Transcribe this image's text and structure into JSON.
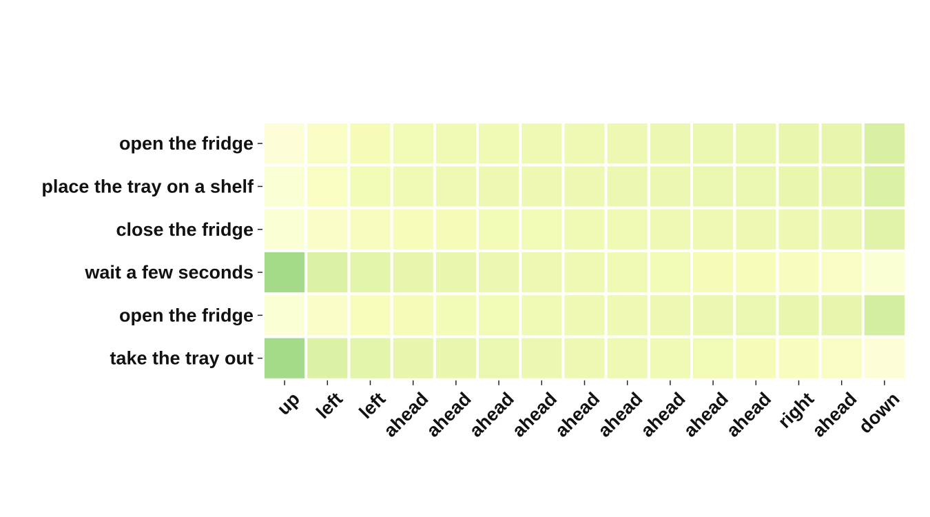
{
  "chart_data": {
    "type": "heatmap",
    "x_labels": [
      "up",
      "left",
      "left",
      "ahead",
      "ahead",
      "ahead",
      "ahead",
      "ahead",
      "ahead",
      "ahead",
      "ahead",
      "ahead",
      "right",
      "ahead",
      "down"
    ],
    "y_labels": [
      "open the fridge",
      "place the tray on a shelf",
      "close the fridge",
      "wait a few seconds",
      "open the fridge",
      "take the tray out"
    ],
    "values": [
      [
        0.05,
        0.13,
        0.18,
        0.2,
        0.21,
        0.21,
        0.22,
        0.22,
        0.23,
        0.24,
        0.25,
        0.25,
        0.26,
        0.27,
        0.35
      ],
      [
        0.07,
        0.14,
        0.19,
        0.21,
        0.22,
        0.23,
        0.23,
        0.23,
        0.24,
        0.24,
        0.25,
        0.25,
        0.26,
        0.27,
        0.34
      ],
      [
        0.06,
        0.12,
        0.15,
        0.17,
        0.18,
        0.19,
        0.2,
        0.21,
        0.21,
        0.22,
        0.22,
        0.23,
        0.23,
        0.24,
        0.31
      ],
      [
        0.55,
        0.34,
        0.29,
        0.27,
        0.26,
        0.24,
        0.23,
        0.22,
        0.21,
        0.2,
        0.18,
        0.17,
        0.15,
        0.13,
        0.06
      ],
      [
        0.06,
        0.12,
        0.16,
        0.18,
        0.19,
        0.2,
        0.21,
        0.22,
        0.22,
        0.23,
        0.24,
        0.25,
        0.26,
        0.27,
        0.37
      ],
      [
        0.55,
        0.34,
        0.29,
        0.27,
        0.26,
        0.25,
        0.24,
        0.23,
        0.22,
        0.21,
        0.2,
        0.18,
        0.15,
        0.13,
        0.05
      ]
    ],
    "colormap": [
      "#ffffe5",
      "#f7fcb9",
      "#d9f0a3",
      "#addd8e",
      "#78c679"
    ],
    "vmin": 0,
    "vmax": 0.7,
    "colorbar": false,
    "grid": false
  }
}
